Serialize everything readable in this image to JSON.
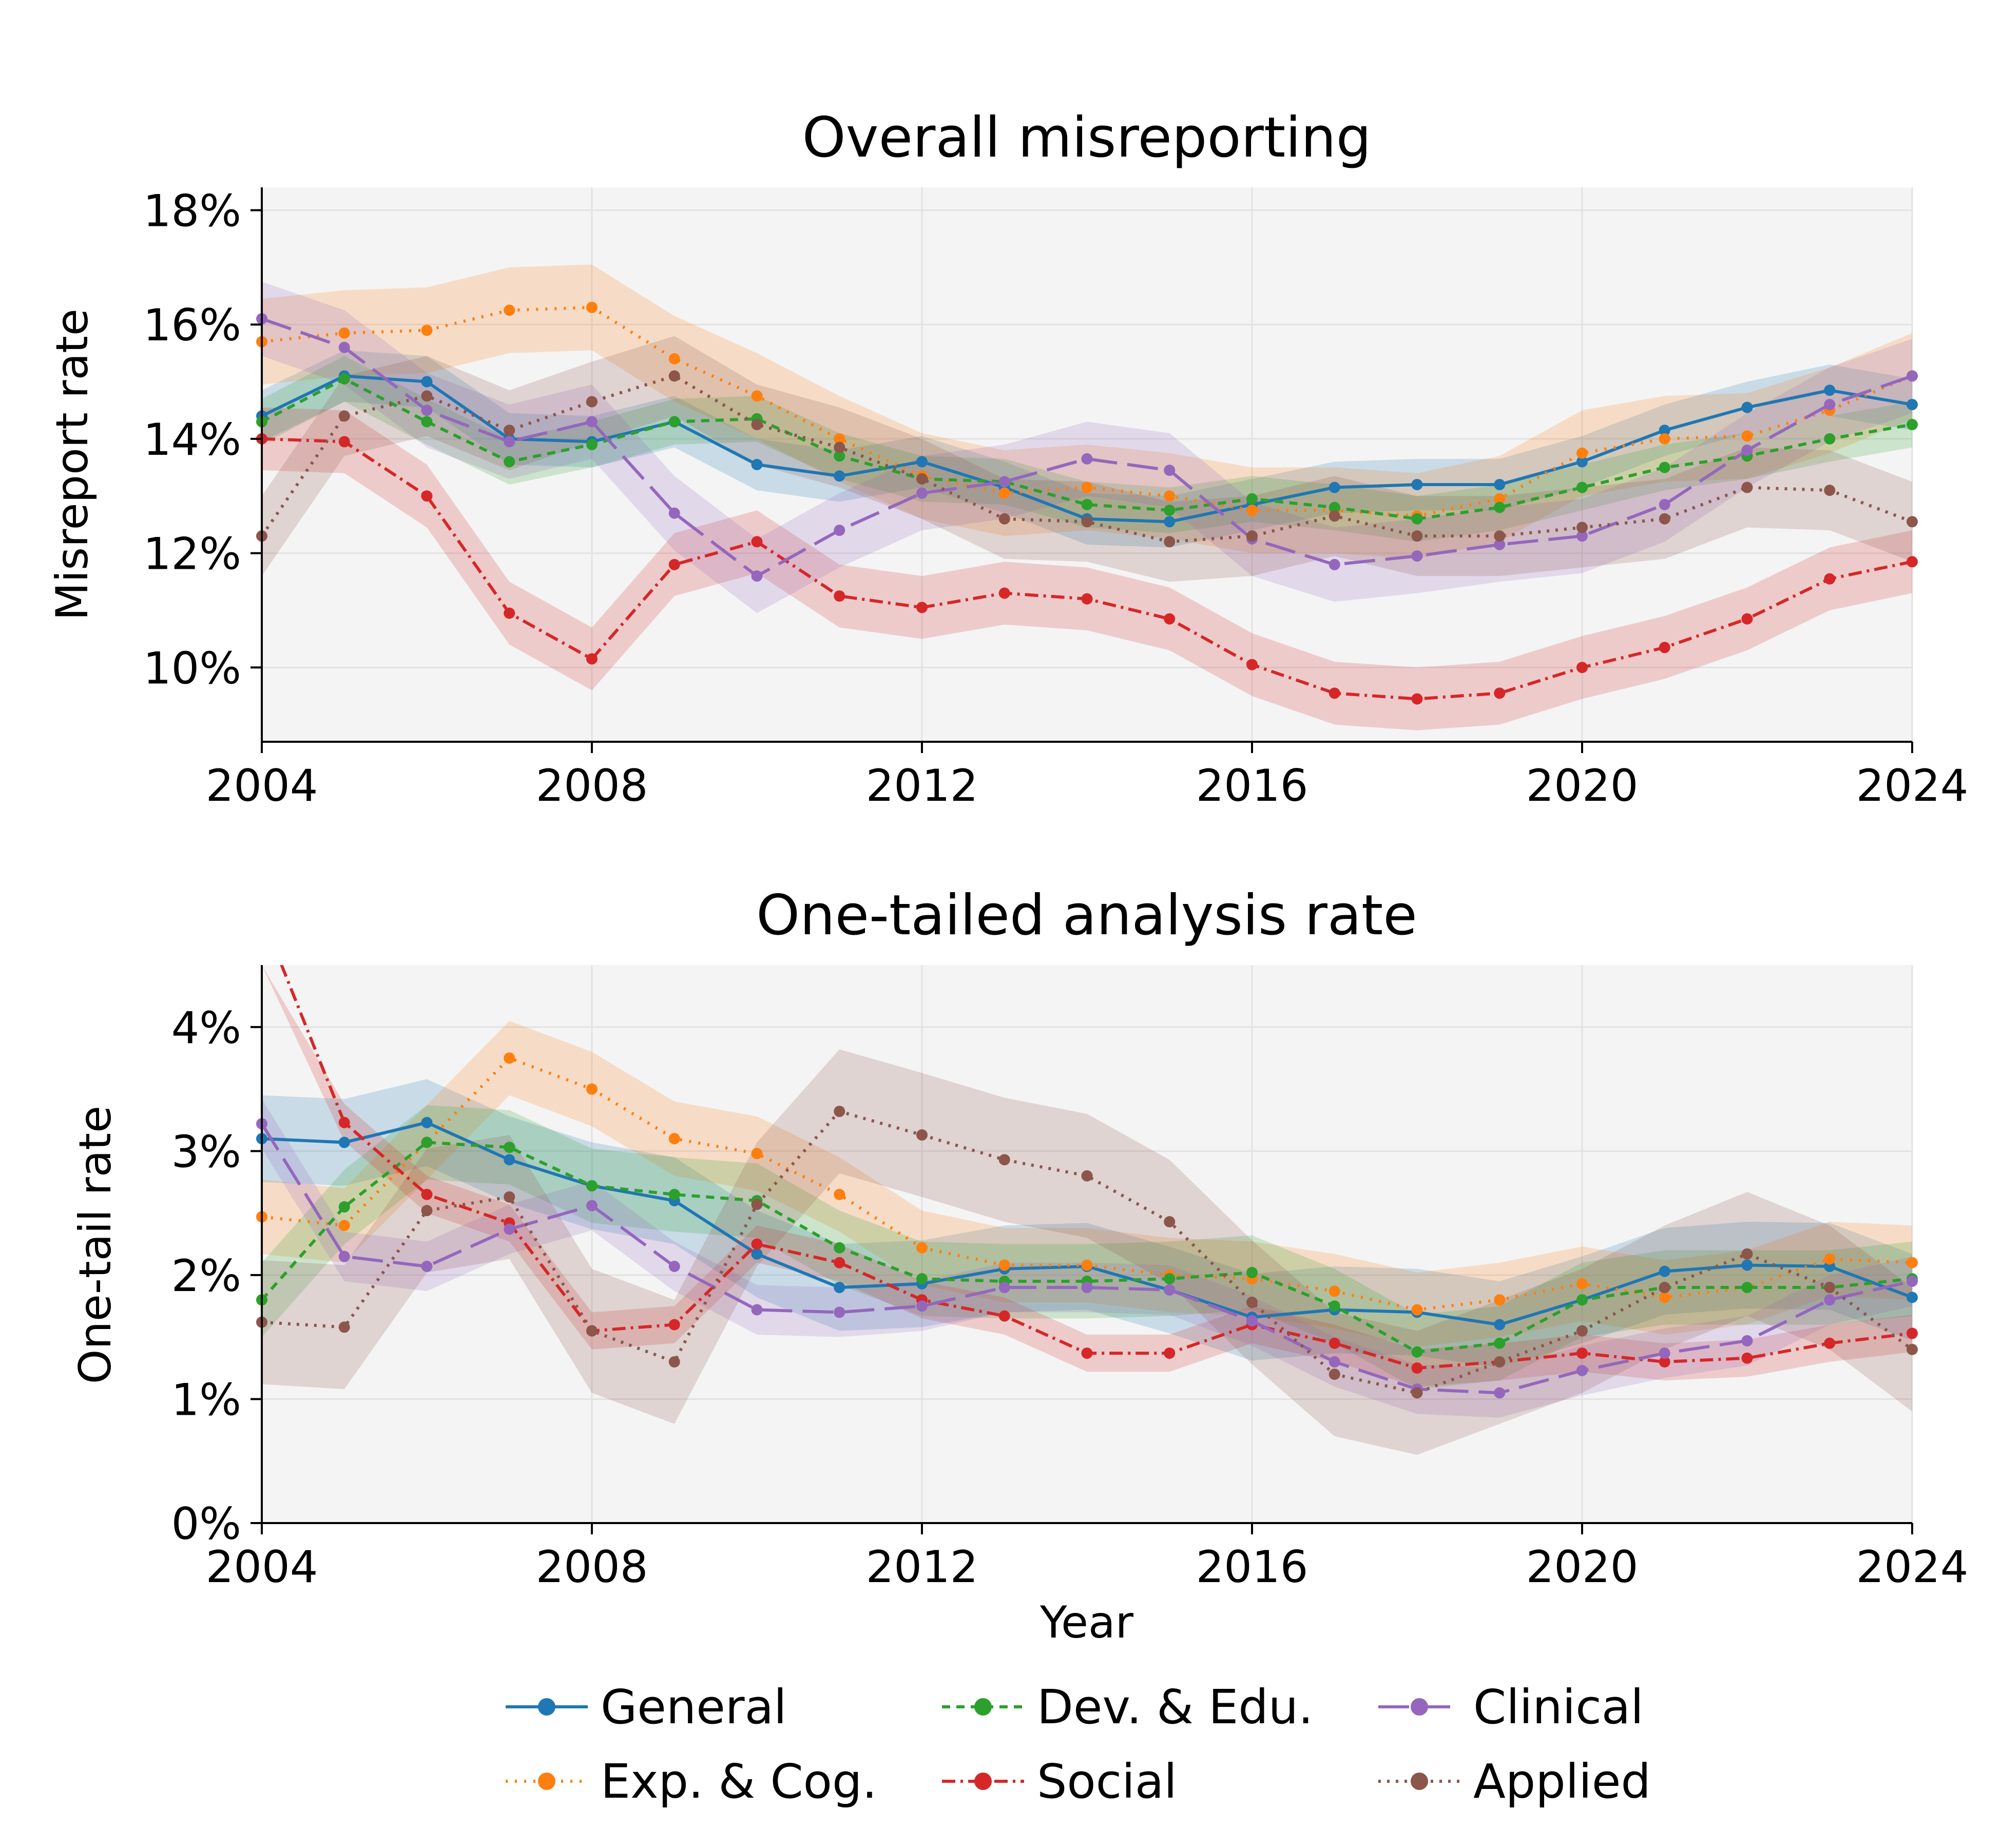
{
  "chart_data": [
    {
      "type": "line",
      "title": "Overall misreporting",
      "xlabel": "",
      "ylabel": "Misreport rate",
      "xlim": [
        2004,
        2024
      ],
      "ylim": [
        8.7,
        18.4
      ],
      "x_ticks": [
        "2004",
        "2008",
        "2012",
        "2016",
        "2020",
        "2024"
      ],
      "y_ticks": [
        "10%",
        "12%",
        "14%",
        "16%",
        "18%"
      ],
      "y_tick_values": [
        10,
        12,
        14,
        16,
        18
      ],
      "grid": true,
      "x": [
        2004,
        2005,
        2006,
        2007,
        2008,
        2009,
        2010,
        2011,
        2012,
        2013,
        2014,
        2015,
        2016,
        2017,
        2018,
        2019,
        2020,
        2021,
        2022,
        2023,
        2024
      ],
      "series": [
        {
          "name": "General",
          "color": "#1f77b4",
          "dash": "",
          "band": 0.45,
          "values": [
            14.4,
            15.1,
            15.0,
            14.0,
            13.95,
            14.3,
            13.55,
            13.35,
            13.6,
            13.15,
            12.6,
            12.55,
            12.85,
            13.15,
            13.2,
            13.2,
            13.6,
            14.15,
            14.55,
            14.85,
            14.6
          ]
        },
        {
          "name": "Exp. & Cog.",
          "color": "#ff7f0e",
          "dash": "4 14",
          "band": 0.75,
          "values": [
            15.7,
            15.85,
            15.9,
            16.25,
            16.3,
            15.4,
            14.75,
            14.0,
            13.35,
            13.05,
            13.15,
            13.0,
            12.75,
            12.75,
            12.65,
            12.95,
            13.75,
            14.0,
            14.05,
            14.5,
            15.1
          ]
        },
        {
          "name": "Dev. & Edu.",
          "color": "#2ca02c",
          "dash": "16 12",
          "band": 0.4,
          "values": [
            14.3,
            15.05,
            14.3,
            13.6,
            13.9,
            14.3,
            14.35,
            13.7,
            13.3,
            13.25,
            12.85,
            12.75,
            12.95,
            12.8,
            12.6,
            12.8,
            13.15,
            13.5,
            13.7,
            14.0,
            14.25
          ]
        },
        {
          "name": "Social",
          "color": "#d62728",
          "dash": "26 10 5 10",
          "band": 0.55,
          "values": [
            14.0,
            13.95,
            13.0,
            10.95,
            10.15,
            11.8,
            12.2,
            11.25,
            11.05,
            11.3,
            11.2,
            10.85,
            10.05,
            9.55,
            9.45,
            9.55,
            10.0,
            10.35,
            10.85,
            11.55,
            11.85
          ]
        },
        {
          "name": "Clinical",
          "color": "#9467bd",
          "dash": "60 20",
          "band": 0.65,
          "values": [
            16.1,
            15.6,
            14.5,
            13.95,
            14.3,
            12.7,
            11.6,
            12.4,
            13.05,
            13.25,
            13.65,
            13.45,
            12.25,
            11.8,
            11.95,
            12.15,
            12.3,
            12.85,
            13.8,
            14.6,
            15.1
          ]
        },
        {
          "name": "Applied",
          "color": "#8c564b",
          "dash": "5 12",
          "band": 0.7,
          "values": [
            12.3,
            14.4,
            14.75,
            14.15,
            14.65,
            15.1,
            14.25,
            13.85,
            13.3,
            12.6,
            12.55,
            12.2,
            12.3,
            12.65,
            12.3,
            12.3,
            12.45,
            12.6,
            13.15,
            13.1,
            12.55
          ]
        }
      ]
    },
    {
      "type": "line",
      "title": "One-tailed analysis rate",
      "xlabel": "Year",
      "ylabel": "One-tail rate",
      "xlim": [
        2004,
        2024
      ],
      "ylim": [
        0,
        4.5
      ],
      "x_ticks": [
        "2004",
        "2008",
        "2012",
        "2016",
        "2020",
        "2024"
      ],
      "y_ticks": [
        "0%",
        "1%",
        "2%",
        "3%",
        "4%"
      ],
      "y_tick_values": [
        0,
        1,
        2,
        3,
        4
      ],
      "grid": true,
      "x": [
        2004,
        2005,
        2006,
        2007,
        2008,
        2009,
        2010,
        2011,
        2012,
        2013,
        2014,
        2015,
        2016,
        2017,
        2018,
        2019,
        2020,
        2021,
        2022,
        2023,
        2024
      ],
      "series": [
        {
          "name": "General",
          "color": "#1f77b4",
          "dash": "",
          "band": 0.35,
          "values": [
            3.1,
            3.07,
            3.23,
            2.93,
            2.72,
            2.6,
            2.17,
            1.9,
            1.93,
            2.05,
            2.07,
            1.88,
            1.66,
            1.72,
            1.7,
            1.6,
            1.8,
            2.03,
            2.08,
            2.07,
            1.82
          ]
        },
        {
          "name": "Exp. & Cog.",
          "color": "#ff7f0e",
          "dash": "4 14",
          "band": 0.3,
          "values": [
            2.47,
            2.4,
            3.07,
            3.75,
            3.5,
            3.1,
            2.98,
            2.65,
            2.22,
            2.08,
            2.08,
            2.0,
            1.97,
            1.87,
            1.72,
            1.8,
            1.93,
            1.82,
            1.9,
            2.13,
            2.1
          ]
        },
        {
          "name": "Dev. & Edu.",
          "color": "#2ca02c",
          "dash": "16 12",
          "band": 0.3,
          "values": [
            1.8,
            2.55,
            3.07,
            3.03,
            2.72,
            2.65,
            2.6,
            2.22,
            1.97,
            1.95,
            1.95,
            1.97,
            2.02,
            1.75,
            1.38,
            1.45,
            1.8,
            1.9,
            1.9,
            1.9,
            1.97
          ]
        },
        {
          "name": "Social",
          "color": "#d62728",
          "dash": "26 10 5 10",
          "band": 0.15,
          "values": [
            4.9,
            3.23,
            2.65,
            2.42,
            1.55,
            1.6,
            2.25,
            2.1,
            1.8,
            1.67,
            1.37,
            1.37,
            1.6,
            1.45,
            1.25,
            1.3,
            1.37,
            1.3,
            1.33,
            1.45,
            1.53
          ]
        },
        {
          "name": "Clinical",
          "color": "#9467bd",
          "dash": "60 20",
          "band": 0.2,
          "values": [
            3.22,
            2.15,
            2.07,
            2.37,
            2.56,
            2.07,
            1.72,
            1.7,
            1.75,
            1.9,
            1.9,
            1.88,
            1.63,
            1.3,
            1.08,
            1.05,
            1.23,
            1.37,
            1.47,
            1.8,
            1.95
          ]
        },
        {
          "name": "Applied",
          "color": "#8c564b",
          "dash": "5 12",
          "band": 0.5,
          "values": [
            1.62,
            1.58,
            2.52,
            2.63,
            1.55,
            1.3,
            2.57,
            3.32,
            3.13,
            2.93,
            2.8,
            2.43,
            1.78,
            1.2,
            1.05,
            1.3,
            1.55,
            1.9,
            2.17,
            1.9,
            1.4
          ]
        }
      ]
    }
  ],
  "legend": {
    "placement": "bottom-center",
    "entries": [
      "General",
      "Dev. & Edu.",
      "Clinical",
      "Exp. & Cog.",
      "Social",
      "Applied"
    ]
  }
}
